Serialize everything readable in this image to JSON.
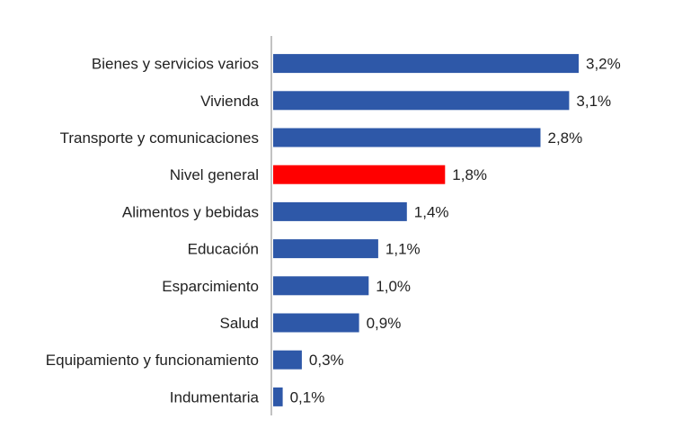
{
  "chart_data": {
    "type": "bar",
    "orientation": "horizontal",
    "categories": [
      "Bienes y servicios varios",
      "Vivienda",
      "Transporte y comunicaciones",
      "Nivel general",
      "Alimentos y bebidas",
      "Educación",
      "Esparcimiento",
      "Salud",
      "Equipamiento y funcionamiento",
      "Indumentaria"
    ],
    "values": [
      3.2,
      3.1,
      2.8,
      1.8,
      1.4,
      1.1,
      1.0,
      0.9,
      0.3,
      0.1
    ],
    "value_labels": [
      "3,2%",
      "3,1%",
      "2,8%",
      "1,8%",
      "1,4%",
      "1,1%",
      "1,0%",
      "0,9%",
      "0,3%",
      "0,1%"
    ],
    "highlight_category": "Nivel general",
    "xlim": [
      0,
      3.5
    ],
    "grid": false,
    "legend": "none",
    "title": "",
    "xlabel": "",
    "ylabel": ""
  },
  "colors": {
    "bar": "#2e58a8",
    "highlight": "#ff0000",
    "axis": "#9a9a9a"
  }
}
